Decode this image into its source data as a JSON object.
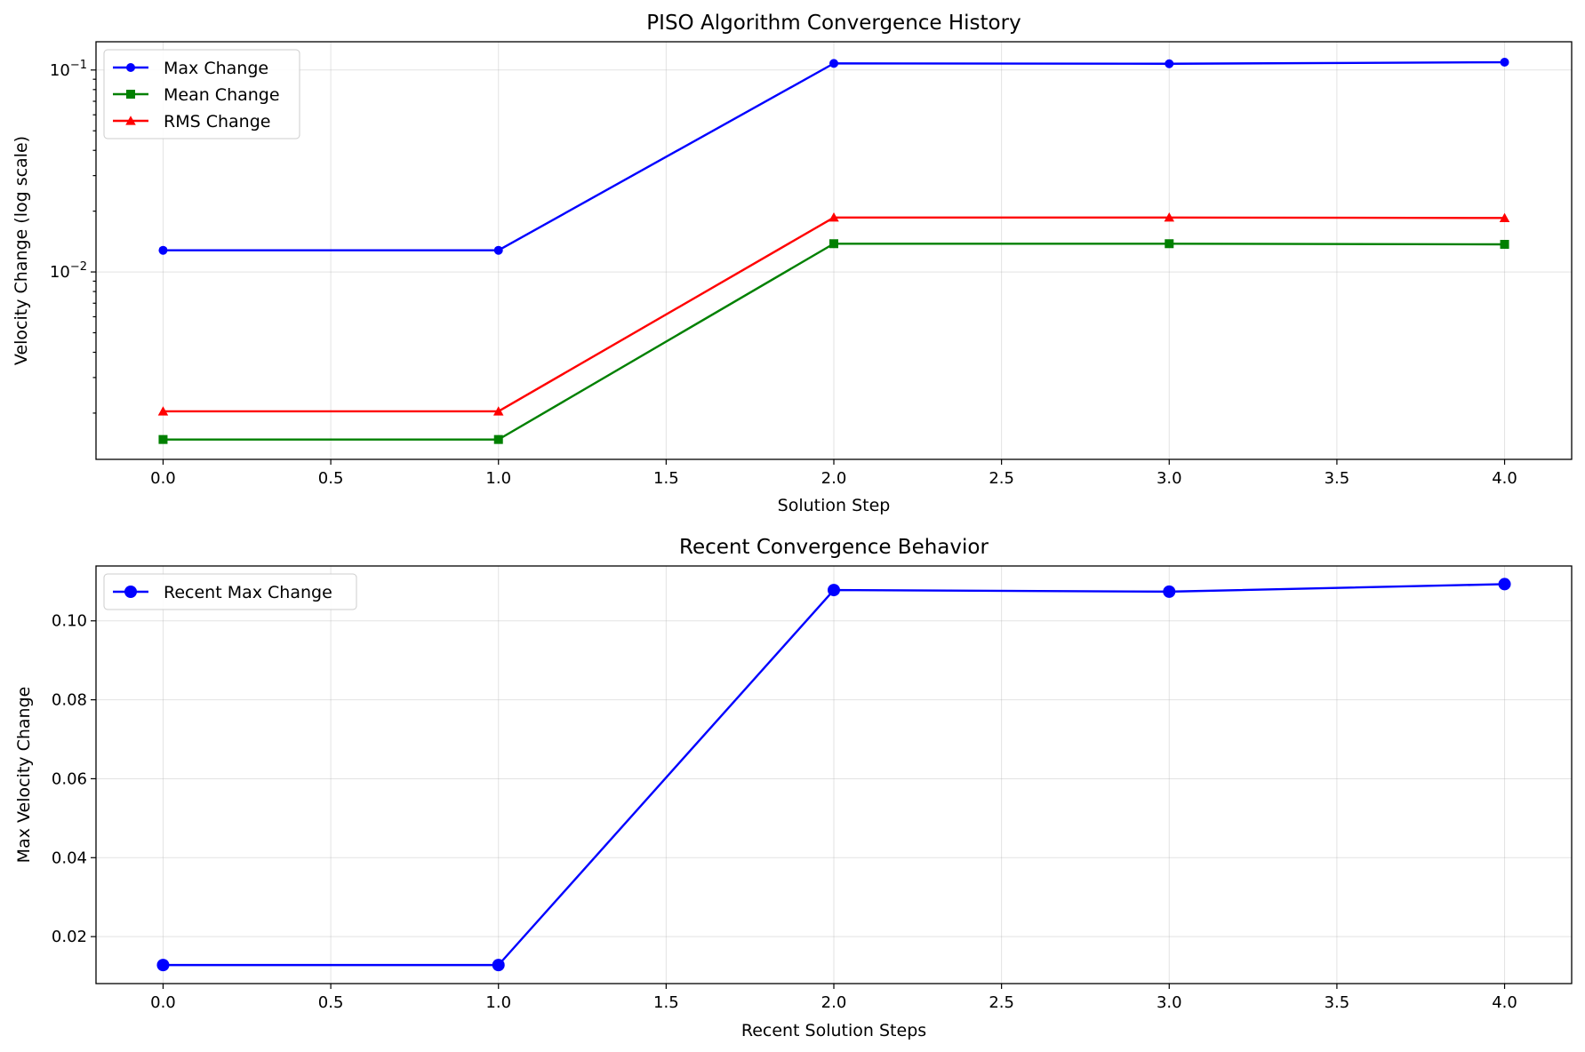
{
  "chart_data": [
    {
      "type": "line",
      "title": "PISO Algorithm Convergence History",
      "xlabel": "Solution Step",
      "ylabel": "Velocity Change (log scale)",
      "yscale": "log",
      "x": [
        0,
        1,
        2,
        3,
        4
      ],
      "xlim": [
        -0.2,
        4.2
      ],
      "ylim": [
        0.00118,
        0.138
      ],
      "xticks": [
        "0.0",
        "0.5",
        "1.0",
        "1.5",
        "2.0",
        "2.5",
        "3.0",
        "3.5",
        "4.0"
      ],
      "yticks": [
        {
          "base": "10",
          "exp": "−1",
          "value": 0.1
        },
        {
          "base": "10",
          "exp": "−2",
          "value": 0.01
        }
      ],
      "grid": true,
      "legend": "top-left",
      "series": [
        {
          "name": "Max Change",
          "values": [
            0.0128,
            0.0128,
            0.1078,
            0.1074,
            0.1093
          ],
          "color": "#0000ff",
          "marker": "circle"
        },
        {
          "name": "Mean Change",
          "values": [
            0.00148,
            0.00148,
            0.0138,
            0.0138,
            0.0137
          ],
          "color": "#008000",
          "marker": "square"
        },
        {
          "name": "RMS Change",
          "values": [
            0.00204,
            0.00204,
            0.0186,
            0.0186,
            0.0185
          ],
          "color": "#ff0000",
          "marker": "triangle"
        }
      ]
    },
    {
      "type": "line",
      "title": "Recent Convergence Behavior",
      "xlabel": "Recent Solution Steps",
      "ylabel": "Max Velocity Change",
      "x": [
        0,
        1,
        2,
        3,
        4
      ],
      "xlim": [
        -0.2,
        4.2
      ],
      "ylim": [
        0.0081,
        0.1139
      ],
      "xticks": [
        "0.0",
        "0.5",
        "1.0",
        "1.5",
        "2.0",
        "2.5",
        "3.0",
        "3.5",
        "4.0"
      ],
      "yticks": [
        "0.02",
        "0.04",
        "0.06",
        "0.08",
        "0.10"
      ],
      "grid": true,
      "legend": "top-left",
      "series": [
        {
          "name": "Recent Max Change",
          "values": [
            0.0128,
            0.0128,
            0.1078,
            0.1074,
            0.1093
          ],
          "color": "#0000ff",
          "marker": "circle"
        }
      ]
    }
  ]
}
